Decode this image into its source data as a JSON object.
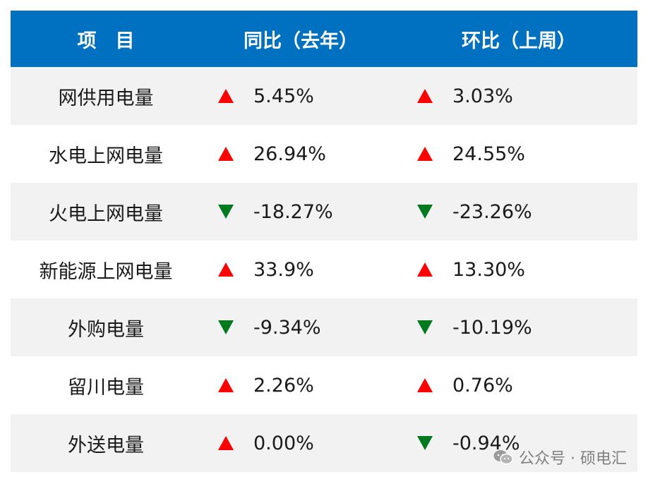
{
  "header": {
    "col_item": "项　目",
    "col_yoy": "同比（去年）",
    "col_mom": "环比（上周）"
  },
  "rows": [
    {
      "name": "网供用电量",
      "yoy": "5.45%",
      "yoy_dir": "up",
      "mom": "3.03%",
      "mom_dir": "up"
    },
    {
      "name": "水电上网电量",
      "yoy": "26.94%",
      "yoy_dir": "up",
      "mom": "24.55%",
      "mom_dir": "up"
    },
    {
      "name": "火电上网电量",
      "yoy": "-18.27%",
      "yoy_dir": "down",
      "mom": "-23.26%",
      "mom_dir": "down"
    },
    {
      "name": "新能源上网电量",
      "yoy": "33.9%",
      "yoy_dir": "up",
      "mom": "13.30%",
      "mom_dir": "up"
    },
    {
      "name": "外购电量",
      "yoy": "-9.34%",
      "yoy_dir": "down",
      "mom": "-10.19%",
      "mom_dir": "down"
    },
    {
      "name": "留川电量",
      "yoy": "2.26%",
      "yoy_dir": "up",
      "mom": "0.76%",
      "mom_dir": "up"
    },
    {
      "name": "外送电量",
      "yoy": "0.00%",
      "yoy_dir": "up",
      "mom": "-0.94%",
      "mom_dir": "down"
    }
  ],
  "colors": {
    "header_bg": "#0070c0",
    "up": "#ff0000",
    "down": "#007a1f",
    "shade": "#f2f2f2"
  },
  "icons": {
    "up": "triangle-up-icon",
    "down": "triangle-down-icon"
  },
  "watermark": {
    "text": "公众号 · 硕电汇",
    "icon": "wechat-icon"
  }
}
